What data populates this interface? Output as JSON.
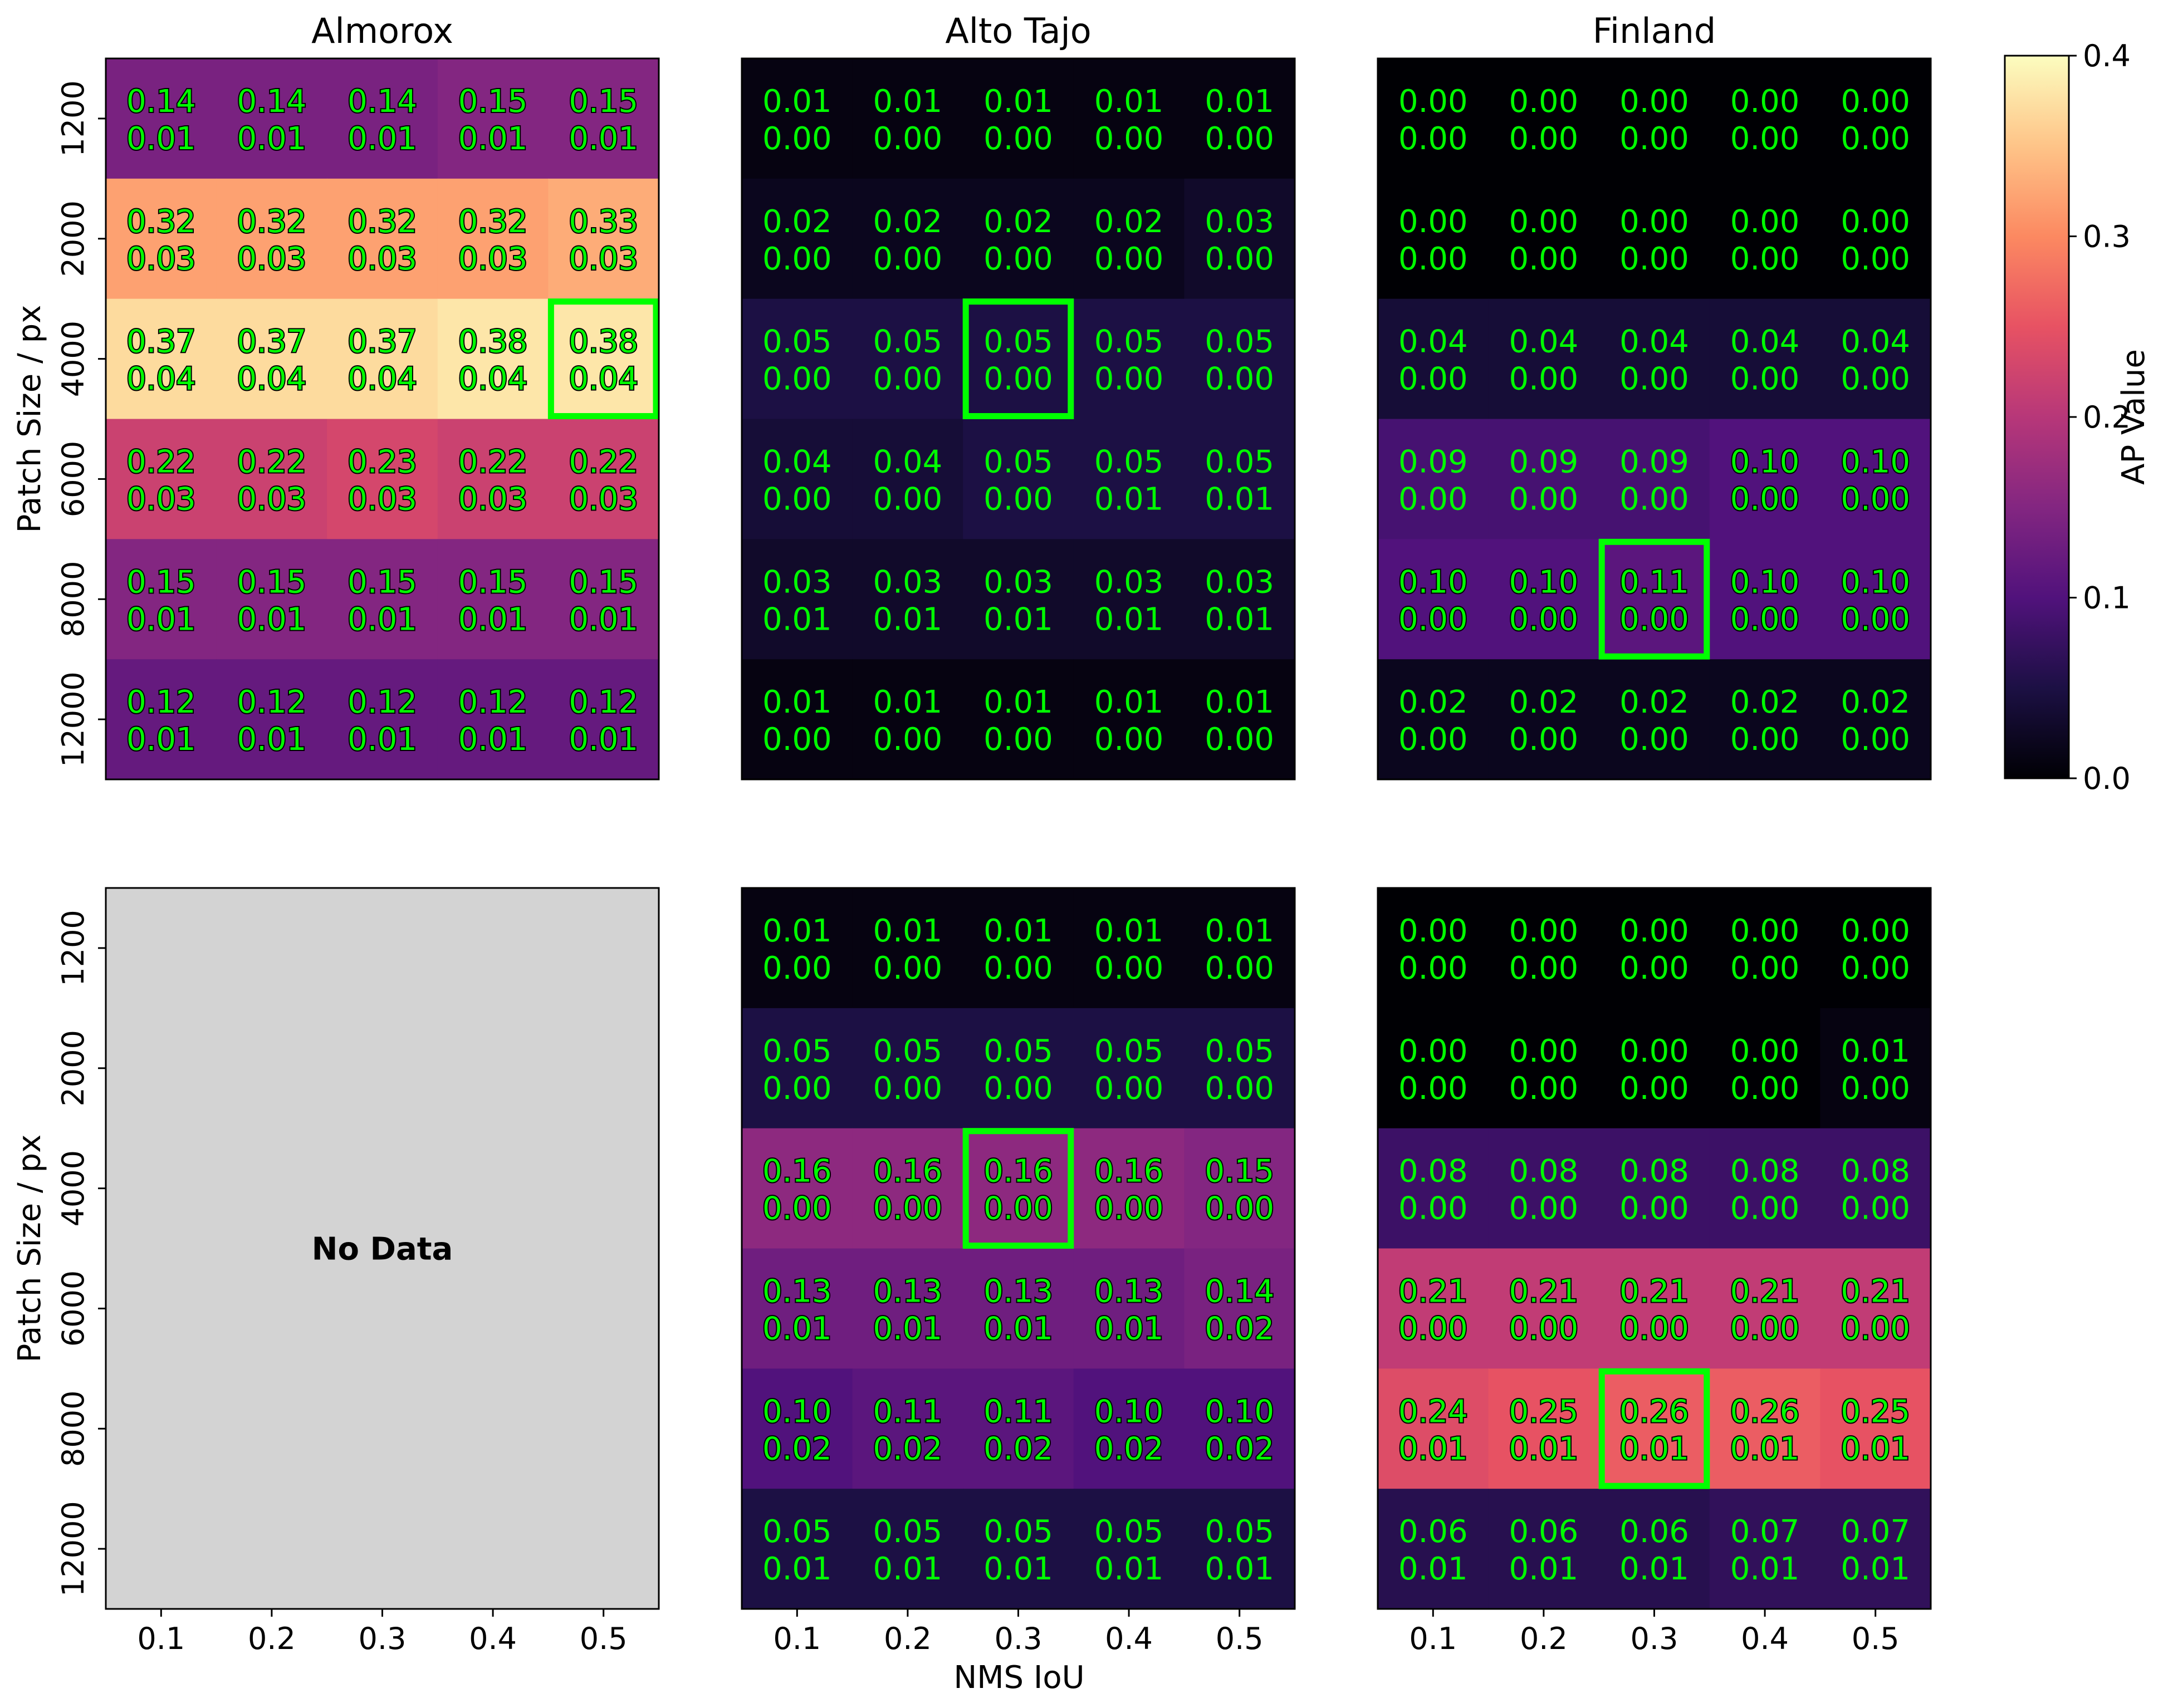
{
  "chart_data": {
    "type": "heatmap",
    "xlabel": "NMS IoU",
    "ylabel": "Patch Size / px",
    "x_categories": [
      "0.1",
      "0.2",
      "0.3",
      "0.4",
      "0.5"
    ],
    "y_categories": [
      "1200",
      "2000",
      "4000",
      "6000",
      "8000",
      "12000"
    ],
    "colorbar": {
      "label": "AP Value",
      "colormap": "magma",
      "range": [
        0.0,
        0.4
      ],
      "ticks": [
        "0.0",
        "0.1",
        "0.2",
        "0.3",
        "0.4"
      ]
    },
    "annotation_color": "#00ff00",
    "highlight_color": "#00ff00",
    "no_data_label": "No Data",
    "no_data_color": "#d3d3d3",
    "panels": [
      {
        "title": "Almorox",
        "row": 0,
        "col": 0,
        "has_data": true,
        "mean": [
          [
            0.14,
            0.14,
            0.14,
            0.15,
            0.15
          ],
          [
            0.32,
            0.32,
            0.32,
            0.32,
            0.33
          ],
          [
            0.37,
            0.37,
            0.37,
            0.38,
            0.38
          ],
          [
            0.22,
            0.22,
            0.23,
            0.22,
            0.22
          ],
          [
            0.15,
            0.15,
            0.15,
            0.15,
            0.15
          ],
          [
            0.12,
            0.12,
            0.12,
            0.12,
            0.12
          ]
        ],
        "std": [
          [
            0.01,
            0.01,
            0.01,
            0.01,
            0.01
          ],
          [
            0.03,
            0.03,
            0.03,
            0.03,
            0.03
          ],
          [
            0.04,
            0.04,
            0.04,
            0.04,
            0.04
          ],
          [
            0.03,
            0.03,
            0.03,
            0.03,
            0.03
          ],
          [
            0.01,
            0.01,
            0.01,
            0.01,
            0.01
          ],
          [
            0.01,
            0.01,
            0.01,
            0.01,
            0.01
          ]
        ],
        "highlight": [
          2,
          4
        ]
      },
      {
        "title": "Alto Tajo",
        "row": 0,
        "col": 1,
        "has_data": true,
        "mean": [
          [
            0.01,
            0.01,
            0.01,
            0.01,
            0.01
          ],
          [
            0.02,
            0.02,
            0.02,
            0.02,
            0.03
          ],
          [
            0.05,
            0.05,
            0.05,
            0.05,
            0.05
          ],
          [
            0.04,
            0.04,
            0.05,
            0.05,
            0.05
          ],
          [
            0.03,
            0.03,
            0.03,
            0.03,
            0.03
          ],
          [
            0.01,
            0.01,
            0.01,
            0.01,
            0.01
          ]
        ],
        "std": [
          [
            0.0,
            0.0,
            0.0,
            0.0,
            0.0
          ],
          [
            0.0,
            0.0,
            0.0,
            0.0,
            0.0
          ],
          [
            0.0,
            0.0,
            0.0,
            0.0,
            0.0
          ],
          [
            0.0,
            0.0,
            0.0,
            0.01,
            0.01
          ],
          [
            0.01,
            0.01,
            0.01,
            0.01,
            0.01
          ],
          [
            0.0,
            0.0,
            0.0,
            0.0,
            0.0
          ]
        ],
        "highlight": [
          2,
          2
        ]
      },
      {
        "title": "Finland",
        "row": 0,
        "col": 2,
        "has_data": true,
        "mean": [
          [
            0.0,
            0.0,
            0.0,
            0.0,
            0.0
          ],
          [
            0.0,
            0.0,
            0.0,
            0.0,
            0.0
          ],
          [
            0.04,
            0.04,
            0.04,
            0.04,
            0.04
          ],
          [
            0.09,
            0.09,
            0.09,
            0.1,
            0.1
          ],
          [
            0.1,
            0.1,
            0.11,
            0.1,
            0.1
          ],
          [
            0.02,
            0.02,
            0.02,
            0.02,
            0.02
          ]
        ],
        "std": [
          [
            0.0,
            0.0,
            0.0,
            0.0,
            0.0
          ],
          [
            0.0,
            0.0,
            0.0,
            0.0,
            0.0
          ],
          [
            0.0,
            0.0,
            0.0,
            0.0,
            0.0
          ],
          [
            0.0,
            0.0,
            0.0,
            0.0,
            0.0
          ],
          [
            0.0,
            0.0,
            0.0,
            0.0,
            0.0
          ],
          [
            0.0,
            0.0,
            0.0,
            0.0,
            0.0
          ]
        ],
        "highlight": [
          4,
          2
        ]
      },
      {
        "title": "",
        "row": 1,
        "col": 0,
        "has_data": false
      },
      {
        "title": "",
        "row": 1,
        "col": 1,
        "has_data": true,
        "mean": [
          [
            0.01,
            0.01,
            0.01,
            0.01,
            0.01
          ],
          [
            0.05,
            0.05,
            0.05,
            0.05,
            0.05
          ],
          [
            0.16,
            0.16,
            0.16,
            0.16,
            0.15
          ],
          [
            0.13,
            0.13,
            0.13,
            0.13,
            0.14
          ],
          [
            0.1,
            0.11,
            0.11,
            0.1,
            0.1
          ],
          [
            0.05,
            0.05,
            0.05,
            0.05,
            0.05
          ]
        ],
        "std": [
          [
            0.0,
            0.0,
            0.0,
            0.0,
            0.0
          ],
          [
            0.0,
            0.0,
            0.0,
            0.0,
            0.0
          ],
          [
            0.0,
            0.0,
            0.0,
            0.0,
            0.0
          ],
          [
            0.01,
            0.01,
            0.01,
            0.01,
            0.02
          ],
          [
            0.02,
            0.02,
            0.02,
            0.02,
            0.02
          ],
          [
            0.01,
            0.01,
            0.01,
            0.01,
            0.01
          ]
        ],
        "highlight": [
          2,
          2
        ]
      },
      {
        "title": "",
        "row": 1,
        "col": 2,
        "has_data": true,
        "mean": [
          [
            0.0,
            0.0,
            0.0,
            0.0,
            0.0
          ],
          [
            0.0,
            0.0,
            0.0,
            0.0,
            0.01
          ],
          [
            0.08,
            0.08,
            0.08,
            0.08,
            0.08
          ],
          [
            0.21,
            0.21,
            0.21,
            0.21,
            0.21
          ],
          [
            0.24,
            0.25,
            0.26,
            0.26,
            0.25
          ],
          [
            0.06,
            0.06,
            0.06,
            0.07,
            0.07
          ]
        ],
        "std": [
          [
            0.0,
            0.0,
            0.0,
            0.0,
            0.0
          ],
          [
            0.0,
            0.0,
            0.0,
            0.0,
            0.0
          ],
          [
            0.0,
            0.0,
            0.0,
            0.0,
            0.0
          ],
          [
            0.0,
            0.0,
            0.0,
            0.0,
            0.0
          ],
          [
            0.01,
            0.01,
            0.01,
            0.01,
            0.01
          ],
          [
            0.01,
            0.01,
            0.01,
            0.01,
            0.01
          ]
        ],
        "highlight": [
          4,
          2
        ]
      }
    ]
  }
}
